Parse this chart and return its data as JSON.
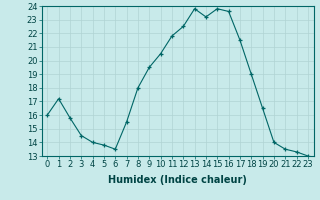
{
  "x": [
    0,
    1,
    2,
    3,
    4,
    5,
    6,
    7,
    8,
    9,
    10,
    11,
    12,
    13,
    14,
    15,
    16,
    17,
    18,
    19,
    20,
    21,
    22,
    23
  ],
  "y": [
    16.0,
    17.2,
    15.8,
    14.5,
    14.0,
    13.8,
    13.5,
    15.5,
    18.0,
    19.5,
    20.5,
    21.8,
    22.5,
    23.8,
    23.2,
    23.8,
    23.6,
    21.5,
    19.0,
    16.5,
    14.0,
    13.5,
    13.3,
    13.0
  ],
  "line_color": "#006666",
  "marker_color": "#006666",
  "bg_color": "#c8eaea",
  "grid_color": "#b0d4d4",
  "xlabel": "Humidex (Indice chaleur)",
  "xlabel_fontsize": 7.0,
  "ylim": [
    13,
    24
  ],
  "xlim": [
    -0.5,
    23.5
  ],
  "yticks": [
    13,
    14,
    15,
    16,
    17,
    18,
    19,
    20,
    21,
    22,
    23,
    24
  ],
  "xticks": [
    0,
    1,
    2,
    3,
    4,
    5,
    6,
    7,
    8,
    9,
    10,
    11,
    12,
    13,
    14,
    15,
    16,
    17,
    18,
    19,
    20,
    21,
    22,
    23
  ],
  "tick_fontsize": 6.0
}
